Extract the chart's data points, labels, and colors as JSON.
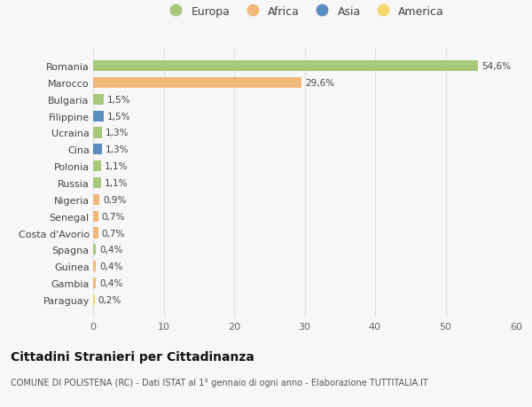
{
  "categories": [
    "Romania",
    "Marocco",
    "Bulgaria",
    "Filippine",
    "Ucraina",
    "Cina",
    "Polonia",
    "Russia",
    "Nigeria",
    "Senegal",
    "Costa d'Avorio",
    "Spagna",
    "Guinea",
    "Gambia",
    "Paraguay"
  ],
  "values": [
    54.6,
    29.6,
    1.5,
    1.5,
    1.3,
    1.3,
    1.1,
    1.1,
    0.9,
    0.7,
    0.7,
    0.4,
    0.4,
    0.4,
    0.2
  ],
  "labels": [
    "54,6%",
    "29,6%",
    "1,5%",
    "1,5%",
    "1,3%",
    "1,3%",
    "1,1%",
    "1,1%",
    "0,9%",
    "0,7%",
    "0,7%",
    "0,4%",
    "0,4%",
    "0,4%",
    "0,2%"
  ],
  "colors": [
    "#a8c87a",
    "#f0b87a",
    "#a8c87a",
    "#5b8ec0",
    "#a8c87a",
    "#5b8ec0",
    "#a8c87a",
    "#a8c87a",
    "#f0b87a",
    "#f0b87a",
    "#f0b87a",
    "#a8c87a",
    "#f0b87a",
    "#f0b87a",
    "#f5d76e"
  ],
  "legend_labels": [
    "Europa",
    "Africa",
    "Asia",
    "America"
  ],
  "legend_colors": [
    "#a8c87a",
    "#f0b87a",
    "#5b8ec0",
    "#f5d76e"
  ],
  "title": "Cittadini Stranieri per Cittadinanza",
  "subtitle": "COMUNE DI POLISTENA (RC) - Dati ISTAT al 1° gennaio di ogni anno - Elaborazione TUTTITALIA.IT",
  "xlim": [
    0,
    60
  ],
  "xticks": [
    0,
    10,
    20,
    30,
    40,
    50,
    60
  ],
  "bg_color": "#f7f7f7",
  "grid_color": "#e0e0e0"
}
